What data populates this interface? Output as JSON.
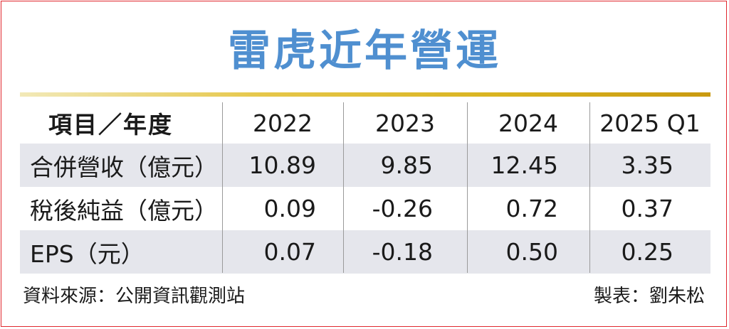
{
  "title": "雷虎近年營運",
  "table": {
    "header": [
      "項目／年度",
      "2022",
      "2023",
      "2024",
      "2025 Q1"
    ],
    "rows": [
      [
        "合併營收（億元）",
        "10.89",
        "9.85",
        "12.45",
        "3.35"
      ],
      [
        "稅後純益（億元）",
        "0.09",
        "-0.26",
        "0.72",
        "0.37"
      ],
      [
        "EPS（元）",
        "0.07",
        "-0.18",
        "0.50",
        "0.25"
      ]
    ]
  },
  "footer": {
    "source": "資料來源：公開資訊觀測站",
    "maker": "製表：劉朱松"
  },
  "colors": {
    "title": "#4f8fd0",
    "border": "#e0282e",
    "gold": "#d9b31f",
    "row_shade": "#e5e6ec"
  }
}
